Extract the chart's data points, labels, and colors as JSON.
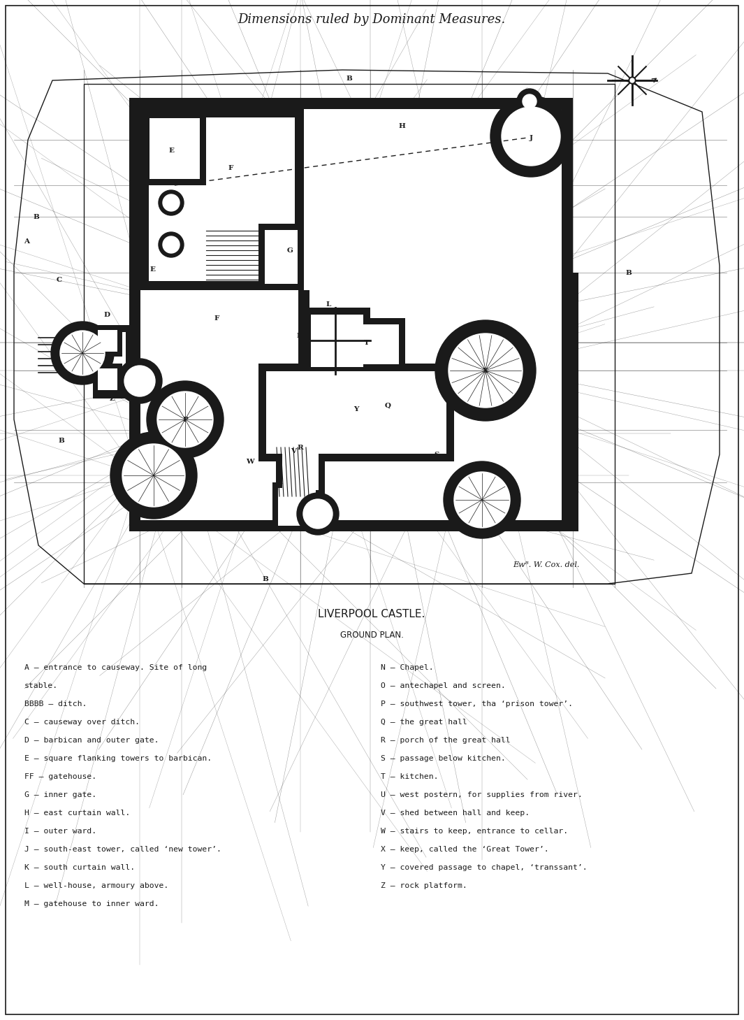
{
  "title": "Dimensions ruled by Dominant Measures.",
  "subtitle1": "LIVERPOOL CASTLE.",
  "subtitle2": "GROUND PLAN.",
  "signature": "Ewᴮ. W. Cox. del.",
  "legend_left": [
    "A – entrance to causeway. Site of long",
    "stable.",
    "BBBB – ditch.",
    "C – causeway over ditch.",
    "D – barbican and outer gate.",
    "E – square flanking towers to barbican.",
    "FF – gatehouse.",
    "G – inner gate.",
    "H – east curtain wall.",
    "I – outer ward.",
    "J – south-east tower, called ‘new tower’.",
    "K – south curtain wall.",
    "L – well-house, armoury above.",
    "M – gatehouse to inner ward."
  ],
  "legend_right": [
    "N – Chapel.",
    "O – antechapel and screen.",
    "P – southwest tower, tha ‘prison tower’.",
    "Q – the great hall",
    "R – porch of the great hall",
    "S – passage below kitchen.",
    "T – kitchen.",
    "U – west postern, for supplies from river.",
    "V – shed between hall and keep.",
    "W – stairs to keep, entrance to cellar.",
    "X – keep, called the ‘Great Tower’.",
    "Y – covered passage to chapel, ‘transsant’.",
    "Z – rock platform."
  ],
  "bg_color": "#ffffff",
  "ink_color": "#1a1a1a"
}
